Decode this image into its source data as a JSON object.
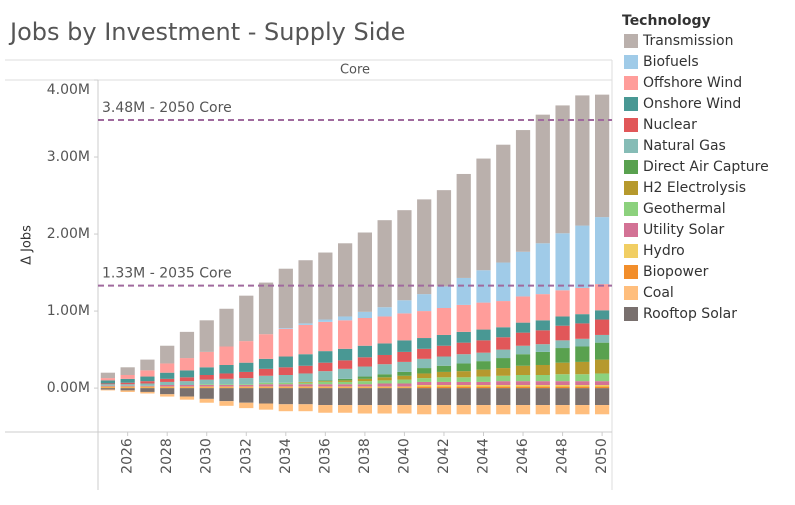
{
  "chart_data": {
    "type": "bar",
    "stacked": true,
    "title": "Jobs by Investment - Supply Side",
    "facet_label": "Core",
    "legend_title": "Technology",
    "y_label": "Δ Jobs",
    "x": [
      2025,
      2026,
      2027,
      2028,
      2029,
      2030,
      2031,
      2032,
      2033,
      2034,
      2035,
      2036,
      2037,
      2038,
      2039,
      2040,
      2041,
      2042,
      2043,
      2044,
      2045,
      2046,
      2047,
      2048,
      2049,
      2050
    ],
    "xlim": [
      2024.5,
      2050.5
    ],
    "xticks": [
      2026,
      2028,
      2030,
      2032,
      2034,
      2036,
      2038,
      2040,
      2042,
      2044,
      2046,
      2048,
      2050
    ],
    "ylim": [
      -0.57,
      4.0
    ],
    "yticks": [
      {
        "value": 0,
        "label": "0.00M"
      },
      {
        "value": 1,
        "label": "1.00M"
      },
      {
        "value": 2,
        "label": "2.00M"
      },
      {
        "value": 3,
        "label": "3.00M"
      },
      {
        "value": 4,
        "label": "4.00M"
      }
    ],
    "reference_lines": [
      {
        "value": 3.48,
        "label": "3.48M - 2050 Core"
      },
      {
        "value": 1.33,
        "label": "1.33M - 2035 Core"
      }
    ],
    "series": [
      {
        "name": "Transmission",
        "color": "#bab0ac",
        "values": [
          0.07,
          0.1,
          0.14,
          0.23,
          0.34,
          0.41,
          0.49,
          0.59,
          0.67,
          0.77,
          0.82,
          0.87,
          0.95,
          1.03,
          1.13,
          1.17,
          1.23,
          1.25,
          1.35,
          1.45,
          1.53,
          1.58,
          1.67,
          1.66,
          1.69,
          1.59
        ]
      },
      {
        "name": "Biofuels",
        "color": "#a0cbe8",
        "values": [
          0,
          0,
          0,
          0,
          0,
          0,
          0,
          0,
          0,
          0.01,
          0.02,
          0.03,
          0.05,
          0.08,
          0.12,
          0.17,
          0.22,
          0.28,
          0.35,
          0.42,
          0.5,
          0.58,
          0.66,
          0.74,
          0.81,
          0.87
        ]
      },
      {
        "name": "Offshore Wind",
        "color": "#ff9d9a",
        "values": [
          0.03,
          0.05,
          0.08,
          0.12,
          0.16,
          0.2,
          0.24,
          0.28,
          0.32,
          0.36,
          0.38,
          0.38,
          0.37,
          0.36,
          0.35,
          0.35,
          0.35,
          0.35,
          0.35,
          0.35,
          0.34,
          0.34,
          0.34,
          0.34,
          0.34,
          0.34
        ]
      },
      {
        "name": "Onshore Wind",
        "color": "#499894",
        "values": [
          0.04,
          0.05,
          0.06,
          0.08,
          0.09,
          0.1,
          0.11,
          0.12,
          0.13,
          0.14,
          0.15,
          0.15,
          0.15,
          0.15,
          0.15,
          0.15,
          0.14,
          0.14,
          0.14,
          0.14,
          0.13,
          0.13,
          0.13,
          0.12,
          0.12,
          0.12
        ]
      },
      {
        "name": "Nuclear",
        "color": "#e15759",
        "values": [
          0.01,
          0.02,
          0.03,
          0.04,
          0.05,
          0.06,
          0.07,
          0.08,
          0.09,
          0.1,
          0.1,
          0.11,
          0.11,
          0.12,
          0.12,
          0.13,
          0.13,
          0.14,
          0.15,
          0.16,
          0.16,
          0.17,
          0.18,
          0.19,
          0.2,
          0.2
        ]
      },
      {
        "name": "Natural Gas",
        "color": "#86bcb6",
        "values": [
          0.02,
          0.02,
          0.03,
          0.04,
          0.05,
          0.06,
          0.07,
          0.08,
          0.09,
          0.1,
          0.11,
          0.12,
          0.13,
          0.13,
          0.13,
          0.13,
          0.12,
          0.12,
          0.12,
          0.11,
          0.11,
          0.11,
          0.1,
          0.1,
          0.1,
          0.1
        ]
      },
      {
        "name": "Direct Air Capture",
        "color": "#59a14f",
        "values": [
          0,
          0,
          0,
          0,
          0,
          0,
          0,
          0,
          0,
          0,
          0,
          0.01,
          0.02,
          0.03,
          0.04,
          0.05,
          0.07,
          0.08,
          0.1,
          0.11,
          0.13,
          0.15,
          0.17,
          0.19,
          0.2,
          0.22
        ]
      },
      {
        "name": "H2 Electrolysis",
        "color": "#b6992d",
        "values": [
          0,
          0,
          0,
          0,
          0,
          0,
          0,
          0,
          0,
          0,
          0.01,
          0.01,
          0.02,
          0.03,
          0.04,
          0.05,
          0.06,
          0.07,
          0.08,
          0.09,
          0.1,
          0.12,
          0.13,
          0.15,
          0.16,
          0.18
        ]
      },
      {
        "name": "Geothermal",
        "color": "#8cd17d",
        "values": [
          0,
          0,
          0,
          0,
          0,
          0.01,
          0.01,
          0.01,
          0.02,
          0.02,
          0.02,
          0.03,
          0.03,
          0.04,
          0.04,
          0.05,
          0.05,
          0.06,
          0.06,
          0.07,
          0.07,
          0.08,
          0.08,
          0.09,
          0.09,
          0.1
        ]
      },
      {
        "name": "Utility Solar",
        "color": "#d37295",
        "values": [
          0.01,
          0.01,
          0.01,
          0.02,
          0.02,
          0.02,
          0.02,
          0.02,
          0.03,
          0.03,
          0.03,
          0.03,
          0.03,
          0.03,
          0.04,
          0.04,
          0.04,
          0.04,
          0.04,
          0.04,
          0.05,
          0.05,
          0.05,
          0.05,
          0.05,
          0.05
        ]
      },
      {
        "name": "Hydro",
        "color": "#f1ce63",
        "values": [
          0.01,
          0.01,
          0.01,
          0.01,
          0.01,
          0.01,
          0.01,
          0.01,
          0.01,
          0.01,
          0.01,
          0.01,
          0.01,
          0.01,
          0.01,
          0.01,
          0.02,
          0.02,
          0.02,
          0.02,
          0.02,
          0.02,
          0.02,
          0.02,
          0.02,
          0.02
        ]
      },
      {
        "name": "Biopower",
        "color": "#f28e2b",
        "values": [
          0.01,
          0.01,
          0.01,
          0.01,
          0.01,
          0.01,
          0.01,
          0.01,
          0.01,
          0.01,
          0.01,
          0.01,
          0.01,
          0.01,
          0.01,
          0.01,
          0.02,
          0.02,
          0.02,
          0.02,
          0.02,
          0.02,
          0.02,
          0.02,
          0.02,
          0.02
        ]
      },
      {
        "name": "Coal",
        "color": "#ffbe7d",
        "values": [
          -0.01,
          -0.02,
          -0.02,
          -0.03,
          -0.04,
          -0.05,
          -0.06,
          -0.07,
          -0.08,
          -0.09,
          -0.09,
          -0.1,
          -0.1,
          -0.11,
          -0.11,
          -0.11,
          -0.12,
          -0.12,
          -0.12,
          -0.12,
          -0.12,
          -0.12,
          -0.12,
          -0.12,
          -0.12,
          -0.12
        ]
      },
      {
        "name": "Rooftop Solar",
        "color": "#79706e",
        "values": [
          -0.02,
          -0.03,
          -0.05,
          -0.08,
          -0.11,
          -0.14,
          -0.17,
          -0.19,
          -0.2,
          -0.21,
          -0.21,
          -0.22,
          -0.22,
          -0.22,
          -0.22,
          -0.22,
          -0.22,
          -0.22,
          -0.22,
          -0.22,
          -0.22,
          -0.22,
          -0.22,
          -0.22,
          -0.22,
          -0.22
        ]
      }
    ]
  }
}
